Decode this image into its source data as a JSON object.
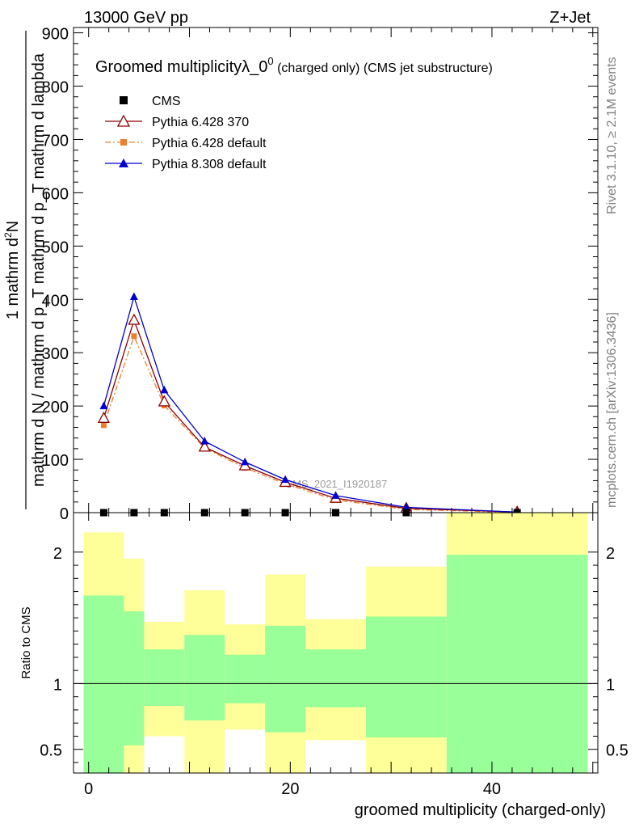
{
  "header": {
    "left": "13000 GeV pp",
    "right": "Z+Jet"
  },
  "side_labels": {
    "rivet": "Rivet 3.1.10, ≥ 2.1M events",
    "mcplots": "mcplots.cern.ch [arXiv:1306.3436]"
  },
  "watermark": "CMS_2021_I1920187",
  "colors": {
    "cms": "#000000",
    "py6_370": "#8b0000",
    "py6_default": "#ee7f2d",
    "py8_default": "#0000cc",
    "band_inner": "#99ff99",
    "band_outer": "#ffff99"
  },
  "chart_data": [
    {
      "type": "line",
      "title": "Groomed multiplicityλ_0",
      "title_sup": "0",
      "title_suffix": " (charged only) (CMS jet substructure)",
      "ylabel_numerator": "1                          mathrm d",
      "ylabel_numerator_sup": "2",
      "ylabel_numerator_end": "N",
      "ylabel_denominator": "mathrm d N / mathrm d p_T mathrm d p_T mathrm d lambda",
      "ylim": [
        0,
        910
      ],
      "yticks": [
        0,
        100,
        200,
        300,
        400,
        500,
        600,
        700,
        800,
        900
      ],
      "xlim": [
        -1.5,
        50.5
      ],
      "legend_position": "top-left",
      "series": [
        {
          "name": "CMS",
          "marker": "square",
          "x": [
            1.5,
            4.5,
            7.5,
            11.5,
            15.5,
            19.5,
            24.5,
            31.5,
            42.5
          ],
          "y": [
            0,
            0,
            0,
            0,
            0,
            0,
            0,
            0,
            0
          ]
        },
        {
          "name": "Pythia 6.428 370",
          "marker": "open-triangle",
          "x": [
            1.5,
            4.5,
            7.5,
            11.5,
            15.5,
            19.5,
            24.5,
            31.5,
            42.5
          ],
          "y": [
            177,
            361,
            208,
            123,
            88,
            57,
            27,
            8,
            1
          ]
        },
        {
          "name": "Pythia 6.428 default",
          "marker": "square",
          "dash": true,
          "x": [
            1.5,
            4.5,
            7.5,
            11.5,
            15.5,
            19.5,
            24.5,
            31.5,
            42.5
          ],
          "y": [
            164,
            331,
            201,
            121,
            84,
            54,
            24,
            6,
            0.5
          ]
        },
        {
          "name": "Pythia 8.308 default",
          "marker": "triangle",
          "x": [
            1.5,
            4.5,
            7.5,
            11.5,
            15.5,
            19.5,
            24.5,
            31.5,
            42.5
          ],
          "y": [
            200,
            405,
            230,
            134,
            95,
            62,
            32,
            10,
            1
          ]
        }
      ]
    },
    {
      "type": "area",
      "xlabel": "groomed multiplicity (charged-only)",
      "ylabel": "Ratio to CMS",
      "xlim": [
        -1.5,
        50.5
      ],
      "ylim": [
        0.32,
        2.3
      ],
      "xticks": [
        0,
        20,
        40
      ],
      "yticks": [
        0.5,
        1,
        2
      ],
      "reference_line": 1,
      "bins": [
        {
          "lo": -0.5,
          "hi": 3.5,
          "inner": [
            0.32,
            1.67
          ],
          "outer": [
            0.32,
            2.15
          ]
        },
        {
          "lo": 3.5,
          "hi": 5.5,
          "inner": [
            0.53,
            1.55
          ],
          "outer": [
            0.32,
            1.95
          ]
        },
        {
          "lo": 5.5,
          "hi": 9.5,
          "inner": [
            0.83,
            1.26
          ],
          "outer": [
            0.6,
            1.47
          ]
        },
        {
          "lo": 9.5,
          "hi": 13.5,
          "inner": [
            0.72,
            1.37
          ],
          "outer": [
            0.32,
            1.71
          ]
        },
        {
          "lo": 13.5,
          "hi": 17.5,
          "inner": [
            0.85,
            1.22
          ],
          "outer": [
            0.65,
            1.45
          ]
        },
        {
          "lo": 17.5,
          "hi": 21.5,
          "inner": [
            0.63,
            1.44
          ],
          "outer": [
            0.32,
            1.83
          ]
        },
        {
          "lo": 21.5,
          "hi": 27.5,
          "inner": [
            0.82,
            1.26
          ],
          "outer": [
            0.57,
            1.49
          ]
        },
        {
          "lo": 27.5,
          "hi": 35.5,
          "inner": [
            0.59,
            1.51
          ],
          "outer": [
            0.32,
            1.89
          ]
        },
        {
          "lo": 35.5,
          "hi": 49.5,
          "inner": [
            0.32,
            1.98
          ],
          "outer": [
            0.32,
            2.3
          ]
        }
      ]
    }
  ]
}
